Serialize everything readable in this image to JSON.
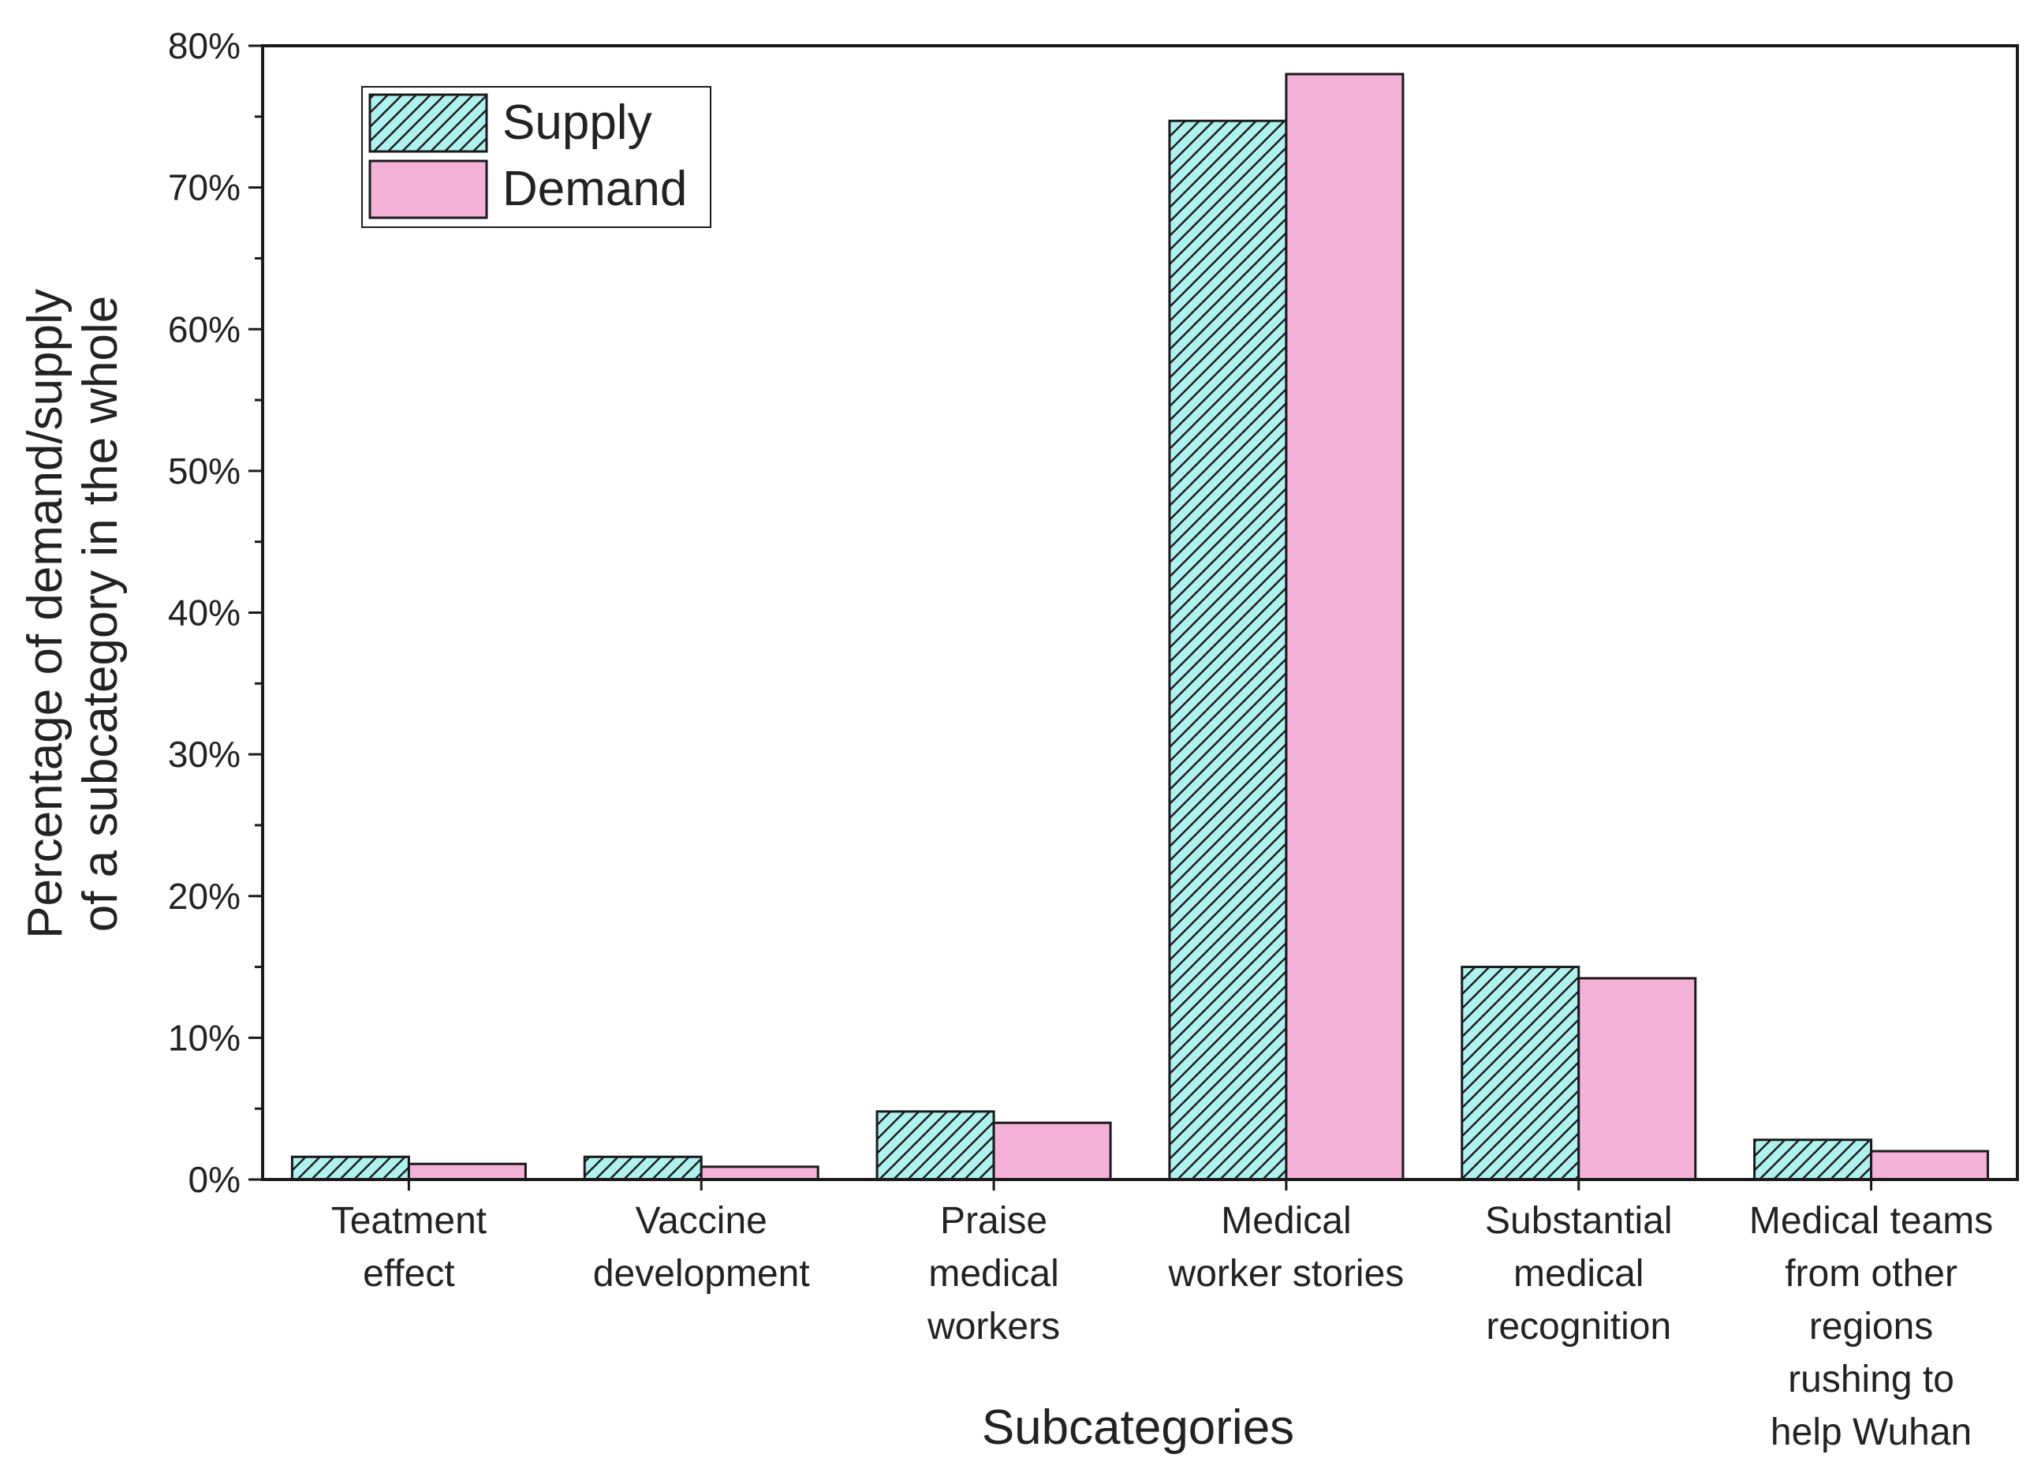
{
  "chart_data": {
    "type": "bar",
    "title": "",
    "xlabel": "Subcategories",
    "ylabel": [
      "Percentage of demand/supply",
      "of a subcategory in the whole"
    ],
    "ylim": [
      0,
      80
    ],
    "yticks": [
      0,
      10,
      20,
      30,
      40,
      50,
      60,
      70,
      80
    ],
    "ytick_labels": [
      "0%",
      "10%",
      "20%",
      "30%",
      "40%",
      "50%",
      "60%",
      "70%",
      "80%"
    ],
    "grid": false,
    "legend_position": "top-left",
    "categories": [
      [
        "Teatment",
        "effect"
      ],
      [
        "Vaccine",
        "development"
      ],
      [
        "Praise",
        "medical",
        "workers"
      ],
      [
        "Medical",
        "worker stories"
      ],
      [
        "Substantial",
        "medical",
        "recognition"
      ],
      [
        "Medical teams",
        "from other",
        "regions",
        "rushing to",
        "help Wuhan"
      ]
    ],
    "series": [
      {
        "name": "Supply",
        "values": [
          1.6,
          1.6,
          4.8,
          74.7,
          15.0,
          2.8
        ],
        "color": "#aef1ef",
        "pattern": "hatch"
      },
      {
        "name": "Demand",
        "values": [
          1.1,
          0.9,
          4.0,
          78.0,
          14.2,
          2.0
        ],
        "color": "#f4b2d8",
        "pattern": "solid"
      }
    ]
  }
}
